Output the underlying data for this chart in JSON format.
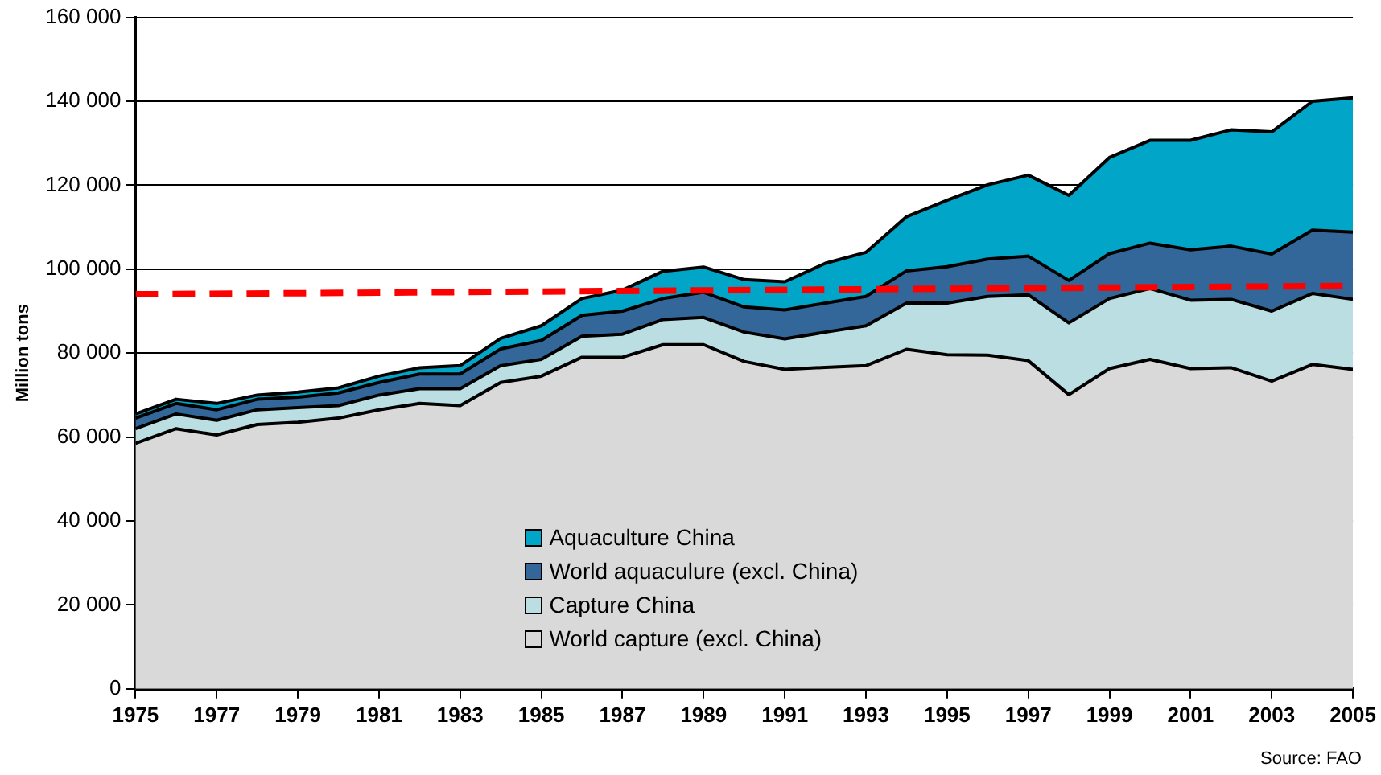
{
  "chart_data": {
    "type": "area",
    "ylabel": "Million tons",
    "stacked": true,
    "grid": "y",
    "legend": "bottom",
    "x": [
      1975,
      1976,
      1977,
      1978,
      1979,
      1980,
      1981,
      1982,
      1983,
      1984,
      1985,
      1986,
      1987,
      1988,
      1989,
      1990,
      1991,
      1992,
      1993,
      1994,
      1995,
      1996,
      1997,
      1998,
      1999,
      2000,
      2001,
      2002,
      2003,
      2004,
      2005
    ],
    "xlim": [
      1975,
      2005
    ],
    "xticks": [
      1975,
      1977,
      1979,
      1981,
      1983,
      1985,
      1987,
      1989,
      1991,
      1993,
      1995,
      1997,
      1999,
      2001,
      2003,
      2005
    ],
    "ylim": [
      0,
      160000
    ],
    "yticks": [
      0,
      {
        "value": 20000,
        "label": "20 000"
      },
      {
        "value": 40000,
        "label": "40 000"
      },
      {
        "value": 60000,
        "label": "60 000"
      },
      {
        "value": 80000,
        "label": "80 000"
      },
      {
        "value": 100000,
        "label": "100 000"
      },
      {
        "value": 120000,
        "label": "120 000"
      },
      {
        "value": 140000,
        "label": "140 000"
      },
      {
        "value": 160000,
        "label": "160 000"
      }
    ],
    "series": [
      {
        "name": "World capture (excl. China)",
        "color": "#d9d9d9",
        "values": [
          58500,
          62000,
          60500,
          63000,
          63500,
          64500,
          66500,
          68000,
          67500,
          73000,
          74500,
          79000,
          79000,
          82000,
          82000,
          78000,
          76100,
          76600,
          77000,
          80900,
          79600,
          79500,
          78200,
          70100,
          76300,
          78500,
          76300,
          76500,
          73300,
          77300,
          76100
        ]
      },
      {
        "name": "Capture China",
        "color": "#bbdee3",
        "values": [
          3500,
          3500,
          3500,
          3500,
          3500,
          3000,
          3500,
          3500,
          4000,
          4000,
          4000,
          5000,
          5500,
          6000,
          6500,
          7000,
          7300,
          8400,
          9500,
          11000,
          12300,
          14000,
          15700,
          17100,
          16700,
          16900,
          16300,
          16300,
          16700,
          16900,
          16700
        ]
      },
      {
        "name": "World aquaculure (excl. China)",
        "color": "#336699",
        "values": [
          2500,
          2500,
          2500,
          2500,
          2500,
          3000,
          3000,
          3500,
          3500,
          4000,
          4500,
          5000,
          5500,
          5000,
          6000,
          6000,
          6900,
          6900,
          7000,
          7700,
          8700,
          8900,
          9200,
          10100,
          10700,
          10800,
          12000,
          12700,
          13600,
          15100,
          16000
        ]
      },
      {
        "name": "Aquaculture China",
        "color": "#00a5c8",
        "values": [
          1000,
          1000,
          1500,
          1000,
          1200,
          1200,
          1500,
          1500,
          2000,
          2500,
          3500,
          4000,
          5000,
          6500,
          6000,
          6500,
          6700,
          9500,
          10500,
          12900,
          15800,
          17700,
          19300,
          20300,
          22900,
          24500,
          26100,
          27700,
          29100,
          30700,
          32000
        ]
      },
      {
        "type": "line",
        "color": "#ff0000",
        "line_style": "dashed",
        "x": [
          1975,
          2005
        ],
        "values": [
          94000,
          96000
        ]
      }
    ],
    "annotations": [
      "Source: FAO"
    ]
  }
}
